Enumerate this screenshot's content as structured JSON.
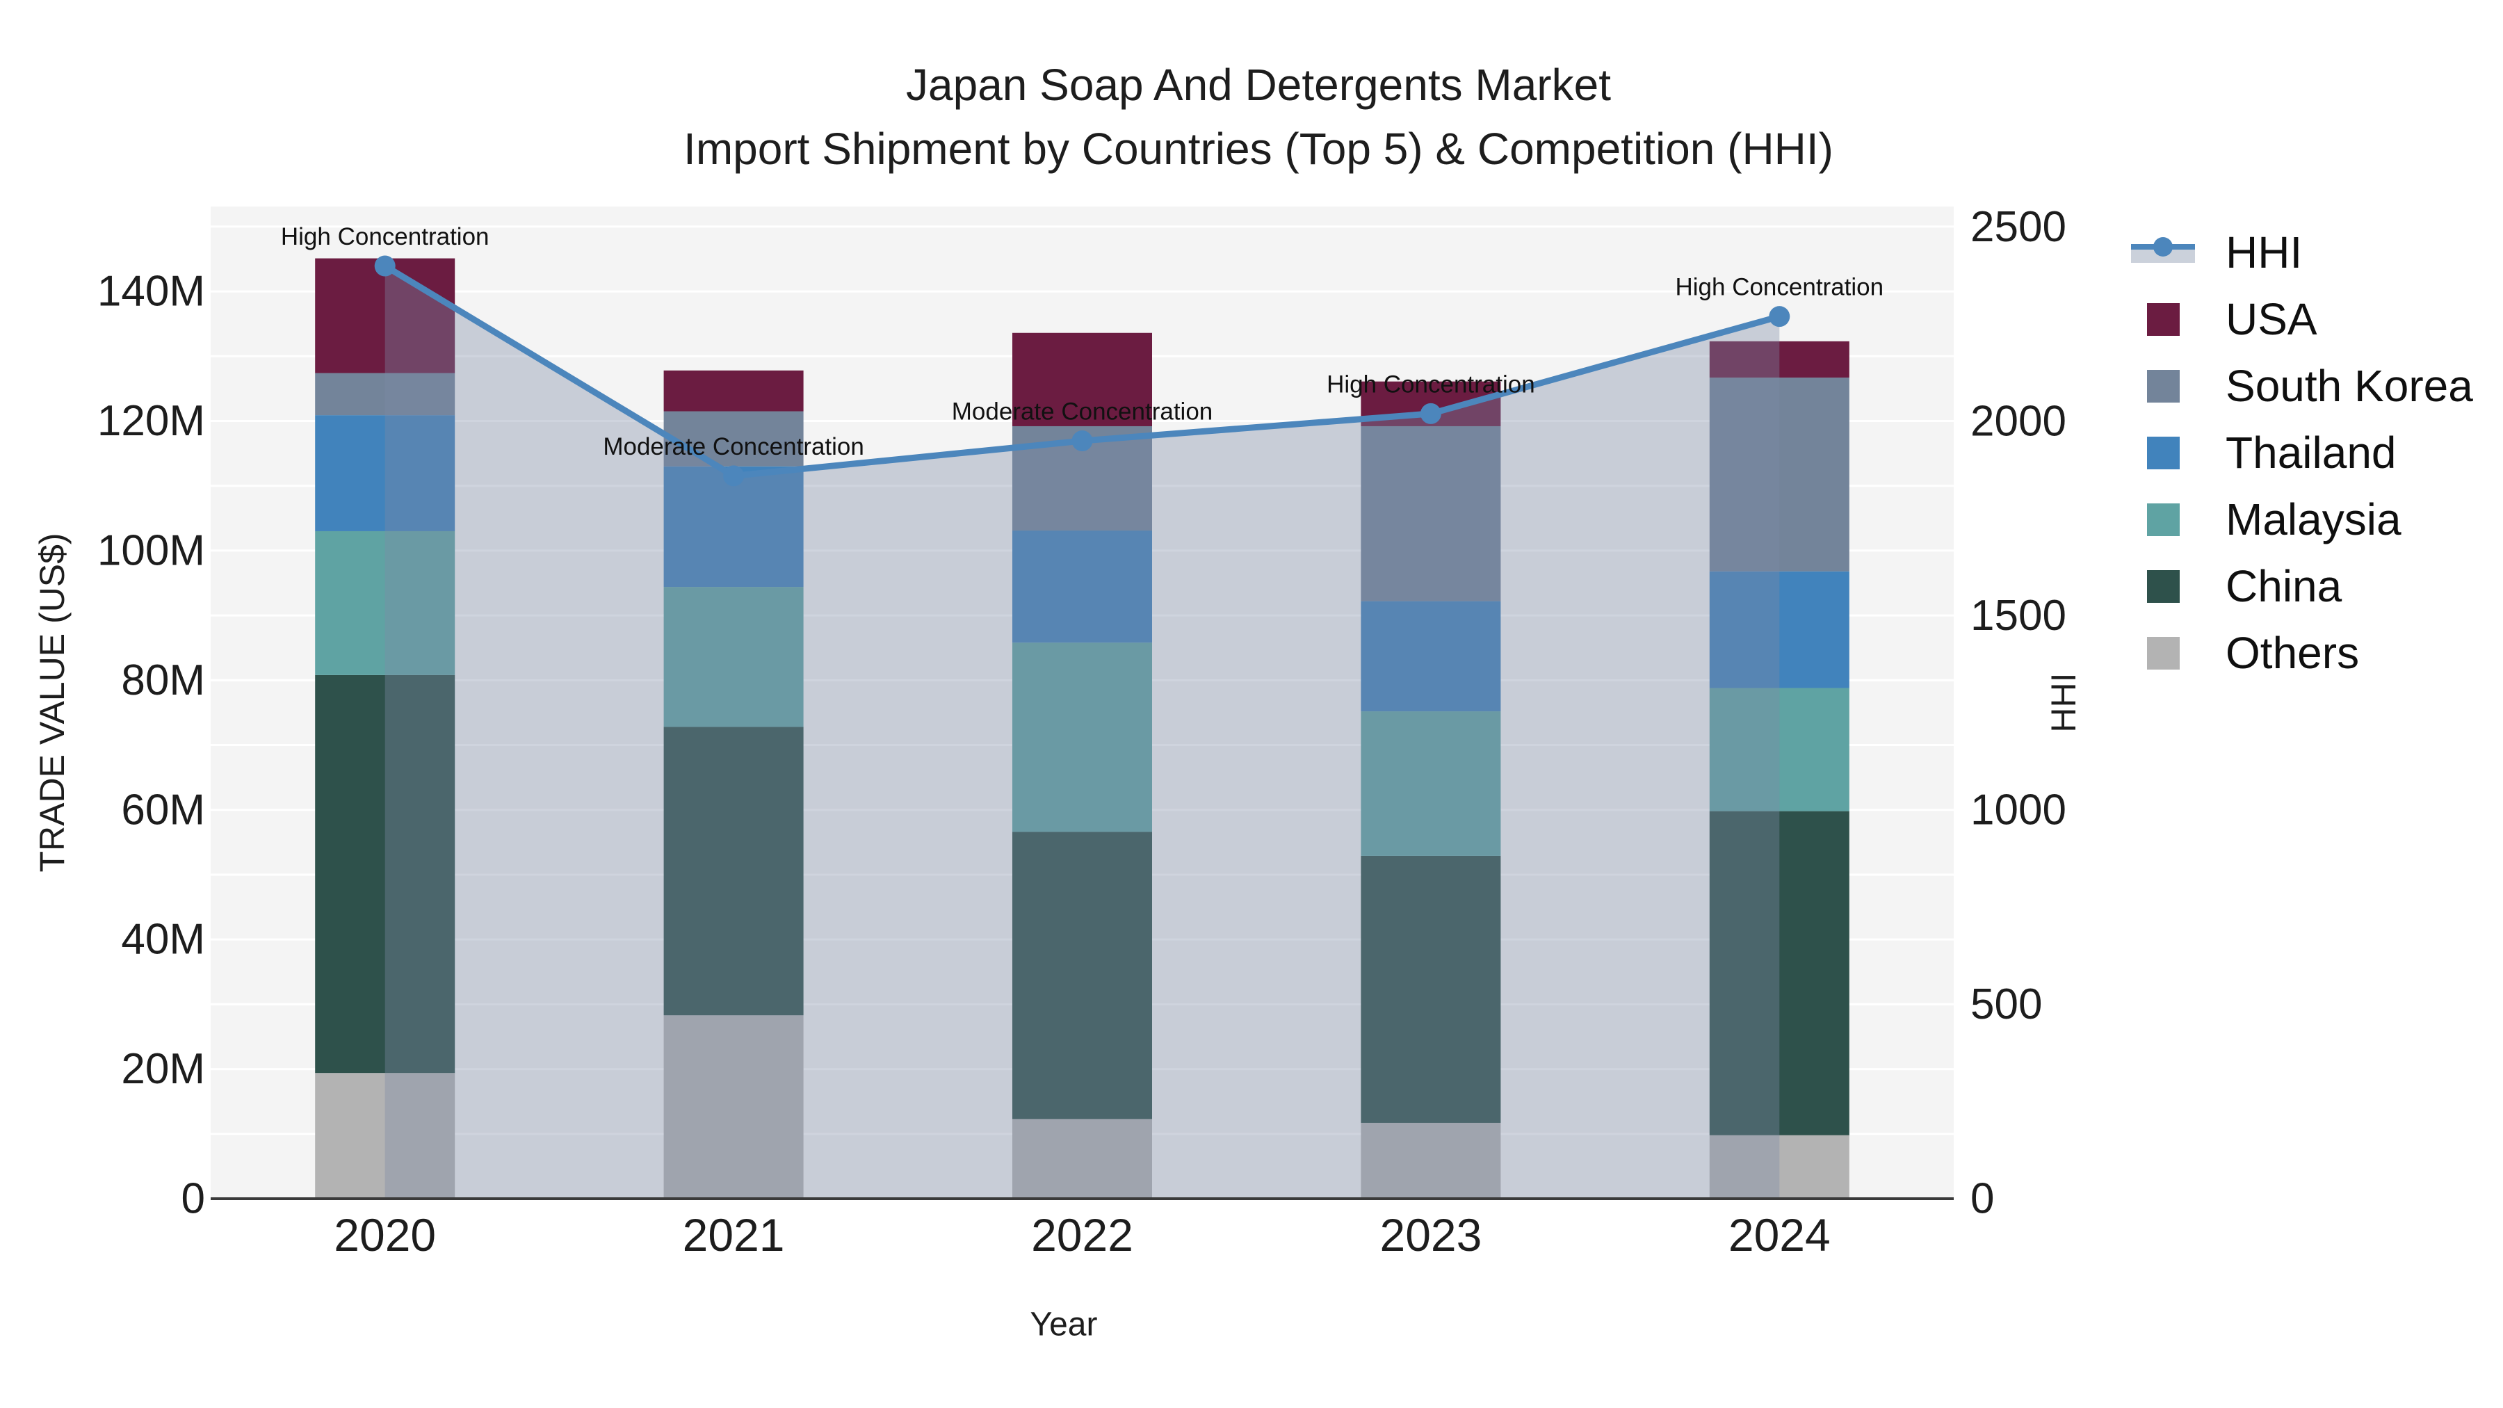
{
  "title": {
    "line1": "Japan Soap And Detergents Market",
    "line2": "Import Shipment by Countries (Top 5) & Competition (HHI)"
  },
  "chart_data": {
    "type": "bar",
    "subtype": "stacked-bar-with-line",
    "categories": [
      "2020",
      "2021",
      "2022",
      "2023",
      "2024"
    ],
    "series": [
      {
        "name": "Others",
        "color": "#b3b3b3",
        "values": [
          19.4,
          28.3,
          12.3,
          11.7,
          9.8
        ]
      },
      {
        "name": "China",
        "color": "#2e514b",
        "values": [
          61.4,
          44.5,
          44.3,
          41.2,
          50.0
        ]
      },
      {
        "name": "Malaysia",
        "color": "#5fa3a3",
        "values": [
          22.2,
          21.6,
          29.2,
          22.3,
          19.0
        ]
      },
      {
        "name": "Thailand",
        "color": "#4183bc",
        "values": [
          17.9,
          18.6,
          17.3,
          17.0,
          18.0
        ]
      },
      {
        "name": "South Korea",
        "color": "#73849a",
        "values": [
          6.5,
          8.5,
          16.1,
          27.0,
          29.9
        ]
      },
      {
        "name": "USA",
        "color": "#6b1c41",
        "values": [
          17.7,
          6.3,
          14.4,
          6.9,
          5.6
        ]
      }
    ],
    "bar_totals": [
      145.1,
      127.8,
      133.6,
      126.1,
      132.3
    ],
    "line_series": {
      "name": "HHI",
      "color": "#4c86bc",
      "fill_color": "rgba(124,138,166,0.37)",
      "values": [
        2400,
        1860,
        1950,
        2020,
        2270
      ]
    },
    "annotations": [
      {
        "category": "2020",
        "text": "High Concentration"
      },
      {
        "category": "2021",
        "text": "Moderate Concentration"
      },
      {
        "category": "2022",
        "text": "Moderate Concentration"
      },
      {
        "category": "2023",
        "text": "High Concentration"
      },
      {
        "category": "2024",
        "text": "High Concentration"
      }
    ],
    "xlabel": "Year",
    "ylabel_left": "TRADE VALUE (US$)",
    "ylabel_right": "HHI",
    "yticks_left": {
      "values": [
        0,
        20,
        40,
        60,
        80,
        100,
        120,
        140
      ],
      "labels": [
        "0",
        "20M",
        "40M",
        "60M",
        "80M",
        "100M",
        "120M",
        "140M"
      ]
    },
    "yticks_right": {
      "values": [
        0,
        500,
        1000,
        1500,
        2000,
        2500
      ],
      "labels": [
        "0",
        "500",
        "1000",
        "1500",
        "2000",
        "2500"
      ]
    },
    "ylim_left": [
      0,
      153.1
    ],
    "ylim_right": [
      0,
      2553
    ],
    "grid": true,
    "grid_step_left": 10,
    "legend_position": "right",
    "plot_bg": "#f4f4f4",
    "grid_color": "#ffffff",
    "axis_line_color": "#3a3a3a",
    "text_color": "#1d1d1d"
  },
  "legend": {
    "items": [
      {
        "label": "HHI",
        "type": "line",
        "color": "#4c86bc"
      },
      {
        "label": "USA",
        "type": "swatch",
        "color": "#6b1c41"
      },
      {
        "label": "South Korea",
        "type": "swatch",
        "color": "#73849a"
      },
      {
        "label": "Thailand",
        "type": "swatch",
        "color": "#4183bc"
      },
      {
        "label": "Malaysia",
        "type": "swatch",
        "color": "#5fa3a3"
      },
      {
        "label": "China",
        "type": "swatch",
        "color": "#2e514b"
      },
      {
        "label": "Others",
        "type": "swatch",
        "color": "#b3b3b3"
      }
    ]
  }
}
